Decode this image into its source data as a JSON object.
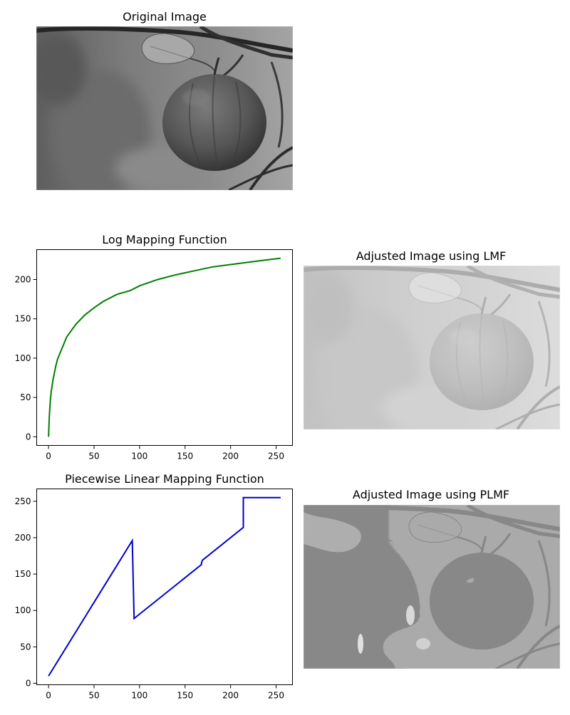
{
  "panels": {
    "original_title": "Original Image",
    "lmf_image_title": "Adjusted Image using LMF",
    "plmf_image_title": "Adjusted Image using PLMF"
  },
  "chart_data": [
    {
      "type": "line",
      "title": "Log Mapping Function",
      "xlabel": "",
      "ylabel": "",
      "xlim": [
        -13,
        268
      ],
      "ylim": [
        -11,
        238
      ],
      "xticks": [
        0,
        50,
        100,
        150,
        200,
        250
      ],
      "yticks": [
        0,
        50,
        100,
        150,
        200
      ],
      "grid": false,
      "series": [
        {
          "color": "#008000",
          "x": [
            0,
            1,
            2,
            3,
            5,
            8,
            10,
            15,
            20,
            30,
            40,
            50,
            60,
            75,
            90,
            100,
            120,
            140,
            160,
            180,
            200,
            220,
            240,
            255
          ],
          "y": [
            0,
            29,
            46,
            58,
            73,
            90,
            99,
            113,
            127,
            143,
            155,
            164,
            172,
            181,
            186,
            192,
            200,
            206,
            211,
            216,
            219,
            222,
            225,
            227
          ]
        }
      ]
    },
    {
      "type": "line",
      "title": "Piecewise Linear Mapping Function",
      "xlabel": "",
      "ylabel": "",
      "xlim": [
        -13,
        268
      ],
      "ylim": [
        -2,
        267
      ],
      "xticks": [
        0,
        50,
        100,
        150,
        200,
        250
      ],
      "yticks": [
        0,
        50,
        100,
        150,
        200,
        250
      ],
      "grid": false,
      "series": [
        {
          "color": "#0000cc",
          "x": [
            0,
            92,
            94,
            168,
            168,
            169,
            214,
            214,
            255
          ],
          "y": [
            10,
            196,
            89,
            163,
            165,
            169,
            214,
            255,
            255
          ]
        }
      ]
    }
  ]
}
